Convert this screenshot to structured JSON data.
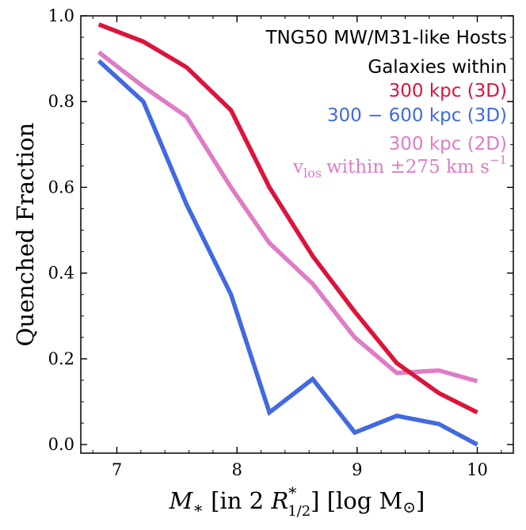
{
  "chart_data": {
    "type": "line",
    "xlabel": "M* [in 2 R*1/2] [log M☉]",
    "ylabel": "Quenched Fraction",
    "xlim": [
      6.7,
      10.3
    ],
    "ylim": [
      -0.02,
      1.0
    ],
    "xticks": [
      7,
      8,
      9,
      10
    ],
    "yticks": [
      0.0,
      0.2,
      0.4,
      0.6,
      0.8,
      1.0
    ],
    "xtick_labels": [
      "7",
      "8",
      "9",
      "10"
    ],
    "ytick_labels": [
      "0.0",
      "0.2",
      "0.4",
      "0.6",
      "0.8",
      "1.0"
    ],
    "grid": false,
    "legend_title_1": "TNG50 MW/M31-like Hosts",
    "legend_title_2": "Galaxies within",
    "series": [
      {
        "name": "300 kpc (3D)",
        "color": "#dc143c",
        "x": [
          6.85,
          7.22,
          7.58,
          7.95,
          8.27,
          8.63,
          8.98,
          9.33,
          9.68,
          10.0
        ],
        "y": [
          0.98,
          0.94,
          0.88,
          0.78,
          0.6,
          0.44,
          0.31,
          0.19,
          0.12,
          0.075
        ]
      },
      {
        "name": "300 − 600 kpc (3D)",
        "color": "#4169e1",
        "x": [
          6.85,
          7.22,
          7.58,
          7.95,
          8.27,
          8.63,
          8.98,
          9.33,
          9.68,
          10.0
        ],
        "y": [
          0.895,
          0.8,
          0.56,
          0.35,
          0.075,
          0.153,
          0.028,
          0.067,
          0.048,
          0.0
        ]
      },
      {
        "name": "300 kpc (2D)",
        "name_line2": "within ±275 km s",
        "name_v": "v",
        "name_sub": "los",
        "name_sup": "−1",
        "color": "#e07bc6",
        "x": [
          6.85,
          7.22,
          7.58,
          7.95,
          8.27,
          8.63,
          8.98,
          9.33,
          9.68,
          10.0
        ],
        "y": [
          0.915,
          0.835,
          0.765,
          0.6,
          0.47,
          0.375,
          0.25,
          0.167,
          0.173,
          0.148
        ]
      }
    ]
  },
  "axis_label_parts": {
    "x_m": "M",
    "x_star": "∗",
    "x_mid": " [in 2 ",
    "x_r": "R",
    "x_r_sup": "*",
    "x_r_sub": "1/2",
    "x_end": "] [log M",
    "x_sun": "⊙",
    "x_close": "]"
  }
}
